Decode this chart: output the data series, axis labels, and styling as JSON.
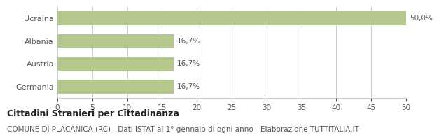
{
  "categories": [
    "Germania",
    "Austria",
    "Albania",
    "Ucraina"
  ],
  "values": [
    16.7,
    16.7,
    16.7,
    50.0
  ],
  "bar_labels": [
    "16,7%",
    "16,7%",
    "16,7%",
    "50,0%"
  ],
  "bar_color": "#b5c98e",
  "xlim": [
    0,
    50
  ],
  "xticks": [
    0,
    5,
    10,
    15,
    20,
    25,
    30,
    35,
    40,
    45,
    50
  ],
  "title_bold": "Cittadini Stranieri per Cittadinanza",
  "subtitle": "COMUNE DI PLACANICA (RC) - Dati ISTAT al 1° gennaio di ogni anno - Elaborazione TUTTITALIA.IT",
  "title_fontsize": 9,
  "subtitle_fontsize": 7.5,
  "bar_label_fontsize": 7.5,
  "ytick_fontsize": 8,
  "xtick_fontsize": 7.5,
  "background_color": "#ffffff",
  "grid_color": "#cccccc",
  "text_color": "#555555",
  "title_color": "#222222"
}
